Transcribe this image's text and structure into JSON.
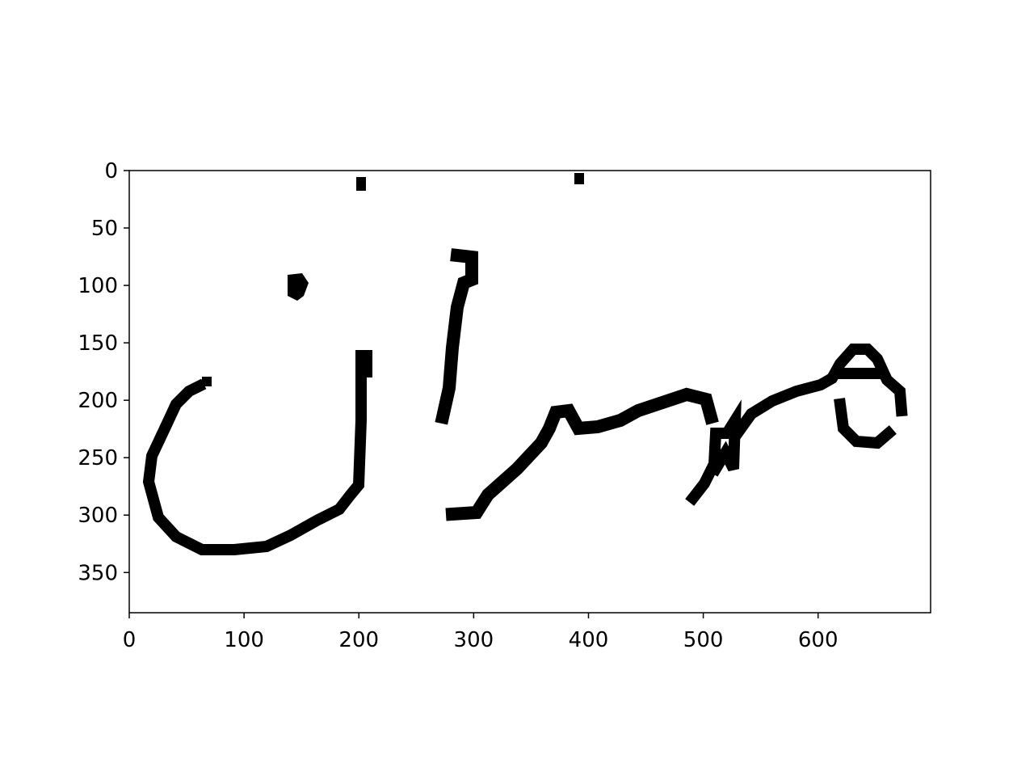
{
  "image": {
    "content": "binarized handwritten word",
    "foreground_color": "#000000",
    "background_color": "#ffffff"
  },
  "axes": {
    "x": {
      "ticks": [
        0,
        100,
        200,
        300,
        400,
        500,
        600
      ],
      "range": [
        0,
        698
      ]
    },
    "y": {
      "ticks": [
        0,
        50,
        100,
        150,
        200,
        250,
        300,
        350
      ],
      "range": [
        0,
        385
      ],
      "inverted": true
    },
    "frame_color": "#000000"
  }
}
